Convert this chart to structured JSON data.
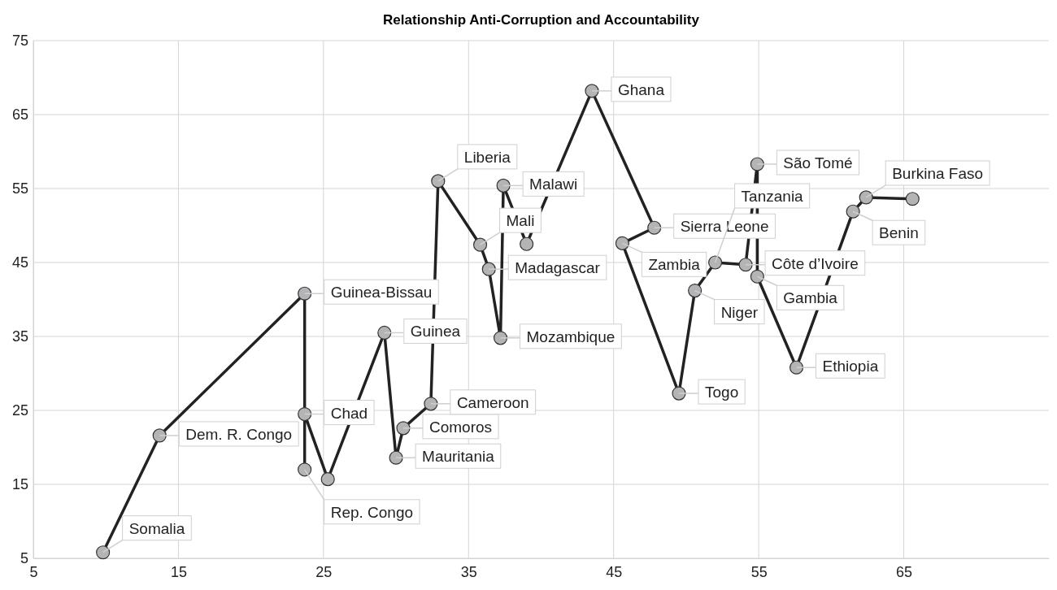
{
  "chart_data": {
    "type": "line",
    "title": "Relationship Anti-Corruption and Accountability",
    "x": [
      9.8,
      13.7,
      23.7,
      23.7,
      23.7,
      25.3,
      29.2,
      30.0,
      30.5,
      32.4,
      32.9,
      35.8,
      36.4,
      37.2,
      37.4,
      39.0,
      43.5,
      47.8,
      45.6,
      49.5,
      50.6,
      52.0,
      54.1,
      54.9,
      54.9,
      57.6,
      61.5,
      62.4,
      65.6
    ],
    "series": [
      {
        "color": "#222222",
        "values": [
          5.8,
          21.6,
          40.8,
          17.0,
          24.5,
          15.7,
          35.5,
          18.6,
          22.6,
          25.9,
          56.0,
          47.4,
          44.1,
          34.8,
          55.4,
          47.5,
          68.2,
          49.7,
          47.6,
          27.3,
          41.2,
          45.0,
          44.7,
          58.3,
          43.1,
          30.8,
          51.9,
          53.8,
          53.6
        ]
      }
    ],
    "marker": "circle",
    "line_style": "solid",
    "grid": true,
    "xlim": [
      5,
      75
    ],
    "xticks": [
      5,
      15,
      25,
      35,
      45,
      55,
      65
    ],
    "ylim": [
      5,
      75
    ],
    "yticks": [
      5,
      15,
      25,
      35,
      45,
      55,
      65,
      75
    ],
    "annotations": [
      {
        "text": "Somalia",
        "x": 9.8,
        "y": 5.8
      },
      {
        "text": "Dem. R. Congo",
        "x": 13.7,
        "y": 21.6
      },
      {
        "text": "Guinea-Bissau",
        "x": 23.7,
        "y": 40.8
      },
      {
        "text": "Rep. Congo",
        "x": 23.7,
        "y": 17.0
      },
      {
        "text": "Chad",
        "x": 23.7,
        "y": 24.5
      },
      {
        "text": "Guinea",
        "x": 29.2,
        "y": 35.5
      },
      {
        "text": "Mauritania",
        "x": 30.0,
        "y": 18.6
      },
      {
        "text": "Comoros",
        "x": 30.5,
        "y": 22.6
      },
      {
        "text": "Cameroon",
        "x": 32.4,
        "y": 25.9
      },
      {
        "text": "Liberia",
        "x": 32.9,
        "y": 56.0
      },
      {
        "text": "Mali",
        "x": 35.8,
        "y": 47.4
      },
      {
        "text": "Madagascar",
        "x": 36.4,
        "y": 44.1
      },
      {
        "text": "Mozambique",
        "x": 37.2,
        "y": 34.8
      },
      {
        "text": "Malawi",
        "x": 37.4,
        "y": 55.4
      },
      {
        "text": "Ghana",
        "x": 43.5,
        "y": 68.2
      },
      {
        "text": "Sierra Leone",
        "x": 47.8,
        "y": 49.7
      },
      {
        "text": "Zambia",
        "x": 45.6,
        "y": 47.6
      },
      {
        "text": "Togo",
        "x": 49.5,
        "y": 27.3
      },
      {
        "text": "Niger",
        "x": 50.6,
        "y": 41.2
      },
      {
        "text": "Tanzania",
        "x": 52.0,
        "y": 45.0
      },
      {
        "text": "Côte d’Ivoire",
        "x": 54.1,
        "y": 44.7
      },
      {
        "text": "São Tomé",
        "x": 54.9,
        "y": 58.3
      },
      {
        "text": "Gambia",
        "x": 54.9,
        "y": 43.1
      },
      {
        "text": "Ethiopia",
        "x": 57.6,
        "y": 30.8
      },
      {
        "text": "Benin",
        "x": 61.5,
        "y": 51.9
      },
      {
        "text": "Burkina Faso",
        "x": 62.4,
        "y": 53.8
      }
    ]
  }
}
